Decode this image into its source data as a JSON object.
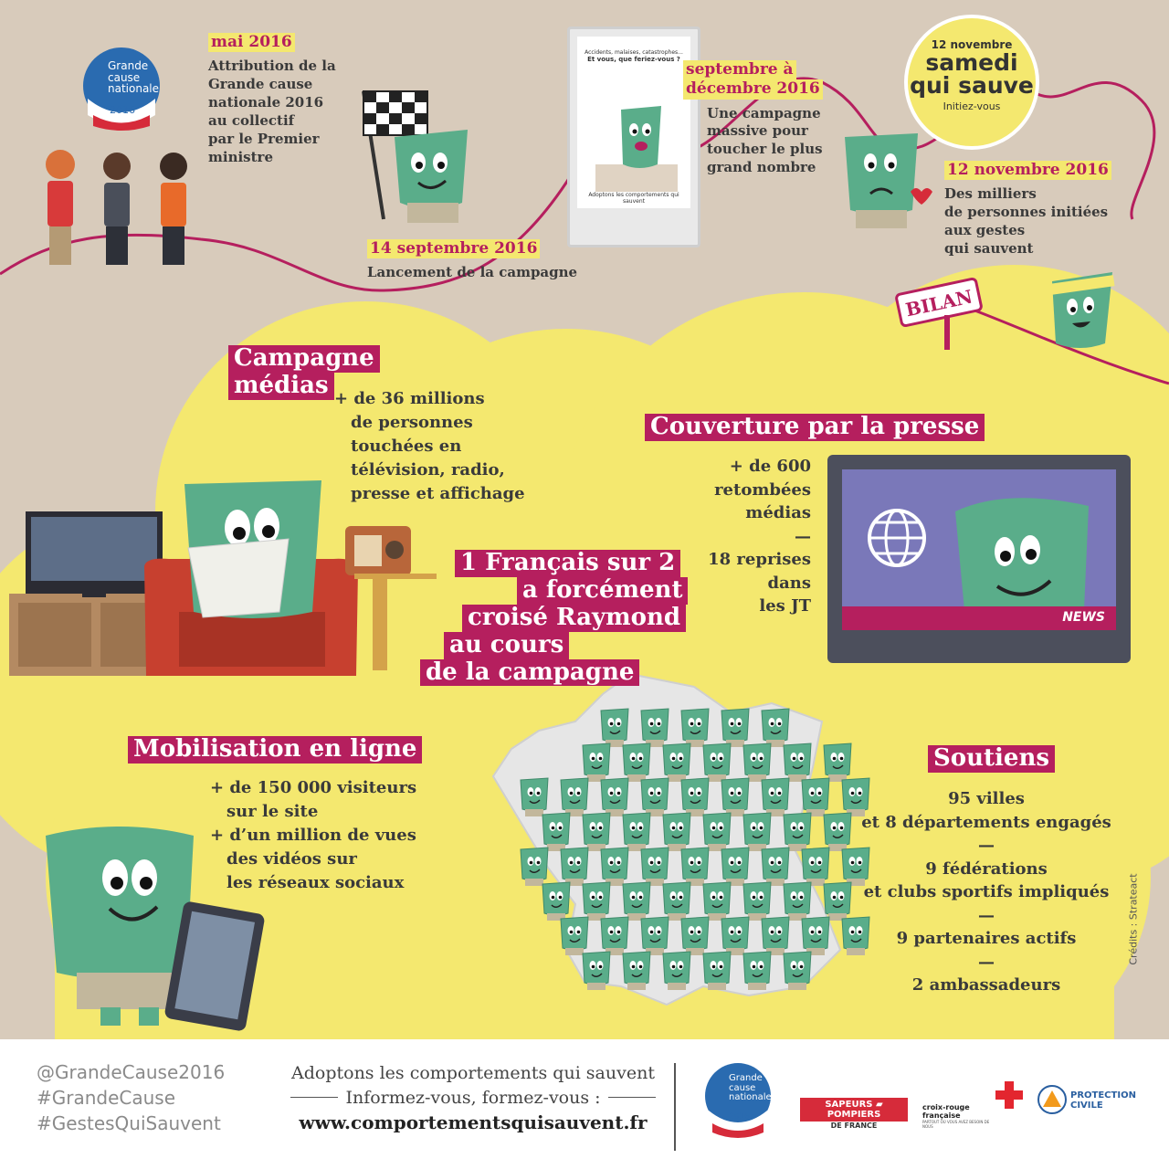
{
  "timeline": [
    {
      "date": "mai 2016",
      "text": [
        "Attribution de la",
        "Grande cause",
        "nationale 2016",
        "au collectif",
        "par le Premier",
        "ministre"
      ]
    },
    {
      "date": "14 septembre 2016",
      "text": [
        "Lancement de la campagne"
      ]
    },
    {
      "date_lines": [
        "septembre à",
        "décembre 2016"
      ],
      "text": [
        "Une campagne",
        "massive pour",
        "toucher le plus",
        "grand nombre"
      ]
    },
    {
      "date": "12 novembre 2016",
      "text": [
        "Des milliers",
        "de personnes initiées",
        "aux gestes",
        "qui sauvent"
      ]
    }
  ],
  "badge": {
    "top": "12 novembre",
    "line1": "samedi",
    "line2": "qui sauve",
    "sub": "Initiez-vous"
  },
  "gcn_logo": {
    "line1": "Grande",
    "line2": "cause",
    "line3": "nationale",
    "year": "2016"
  },
  "poster": {
    "line1": "Accidents, malaises, catastrophes...",
    "line2": "Et vous, que feriez-vous ?",
    "bottom": "Adoptons les comportements qui sauvent"
  },
  "bilan_sign": "BILAN",
  "media": {
    "title_lines": [
      "Campagne",
      "médias"
    ],
    "lines": [
      "+ de 36 millions",
      "de personnes",
      "touchées en",
      "télévision, radio,",
      "presse et affichage"
    ]
  },
  "presse": {
    "title": "Couverture par la presse",
    "lines": [
      "+ de 600",
      "retombées",
      "médias",
      "—",
      "18 reprises",
      "dans",
      "les JT"
    ],
    "news_label": "NEWS"
  },
  "raymond": {
    "lines": [
      "1 Français sur 2",
      "a forcément",
      "croisé Raymond",
      "au cours",
      "de la campagne"
    ]
  },
  "online": {
    "title": "Mobilisation en ligne",
    "lines": [
      "+ de 150 000 visiteurs",
      "sur le site",
      "+ d’un million de vues",
      "des vidéos sur",
      "les réseaux sociaux"
    ]
  },
  "soutiens": {
    "title": "Soutiens",
    "lines": [
      "95 villes",
      "et 8 départements engagés",
      "—",
      "9 fédérations",
      "et clubs sportifs impliqués",
      "—",
      "9 partenaires actifs",
      "—",
      "2 ambassadeurs"
    ]
  },
  "credits": "Crédits : Strateact",
  "footer": {
    "hashtags": [
      "@GrandeCause2016",
      "#GrandeCause",
      "#GestesQuiSauvent"
    ],
    "slogan": "Adoptons les comportements qui sauvent",
    "sub": "Informez-vous, formez-vous :",
    "url": "www.comportementsquisauvent.fr",
    "sapeurs": "SAPEURS ▰ POMPIERS",
    "sapeurs_sub": "DE FRANCE",
    "croix_rouge": "croix-rouge française",
    "croix_rouge_sub": "PARTOUT OÙ VOUS AVEZ BESOIN DE NOUS",
    "protection": [
      "PROTECTION",
      "CIVILE"
    ]
  },
  "colors": {
    "magenta": "#b51f5e",
    "yellow": "#f4e86f",
    "mascot": "#5aad8a",
    "bg": "#d8cbbb"
  }
}
